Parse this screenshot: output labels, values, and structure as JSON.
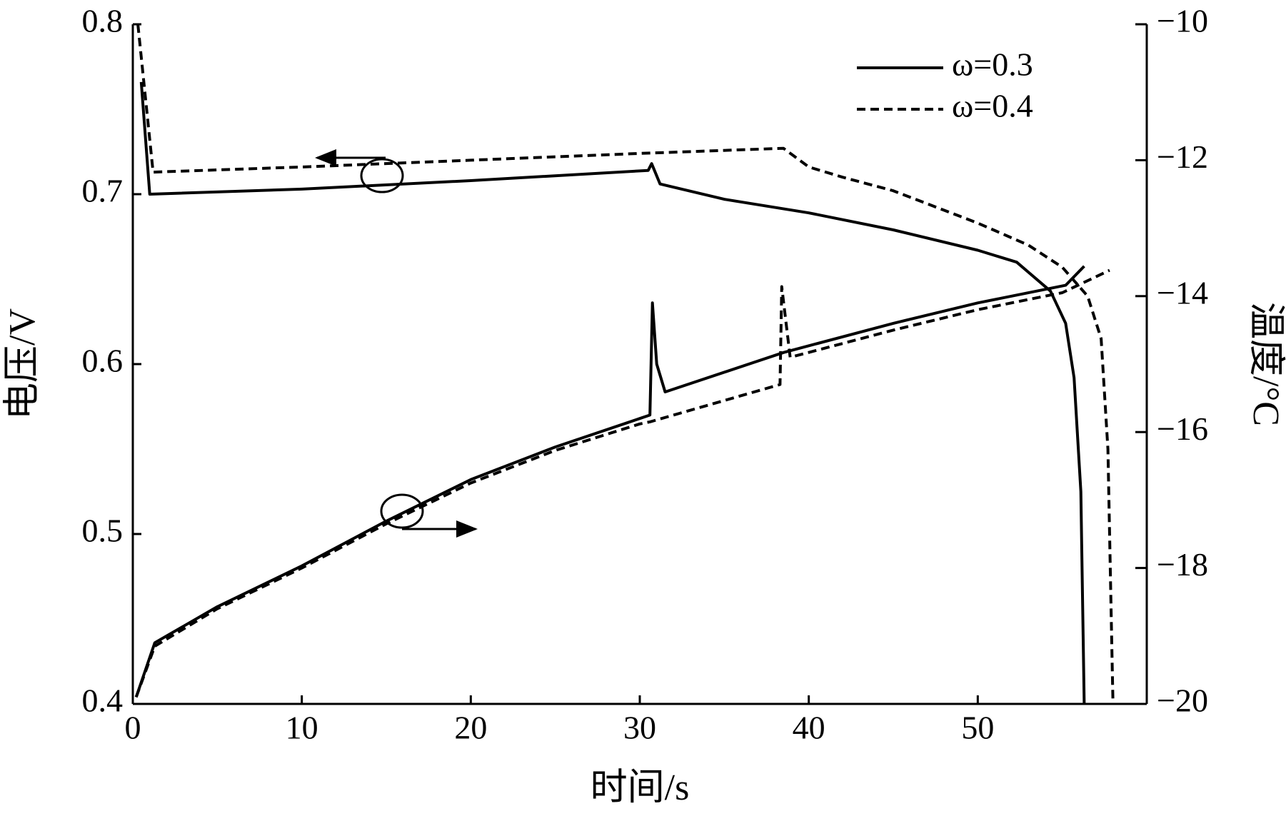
{
  "chart_data": {
    "type": "line",
    "xlabel": "时间/s",
    "ylabel": "电压/V",
    "y2label": "温度/°C",
    "xlim": [
      0,
      60
    ],
    "xticks": [
      0,
      10,
      20,
      30,
      40,
      50
    ],
    "ylim": [
      0.4,
      0.8
    ],
    "yticks": [
      0.4,
      0.5,
      0.6,
      0.7,
      0.8
    ],
    "y2lim": [
      -20,
      -10
    ],
    "y2ticks": [
      {
        "value": -20,
        "label": "−20"
      },
      {
        "value": -18,
        "label": "−18"
      },
      {
        "value": -16,
        "label": "−16"
      },
      {
        "value": -14,
        "label": "−14"
      },
      {
        "value": -12,
        "label": "−12"
      },
      {
        "value": -10,
        "label": "−10"
      }
    ],
    "legend": "upper right",
    "series": [
      {
        "name": "ω=0.3",
        "color": "#000000",
        "dashed": false,
        "x": [
          0.5,
          1.0,
          10,
          20,
          30.5,
          30.7,
          31.2,
          35,
          40,
          45,
          50,
          52.3,
          54.3,
          55.2,
          55.7,
          56.1,
          56.3
        ],
        "values": [
          0.766,
          0.7,
          0.703,
          0.708,
          0.714,
          0.718,
          0.706,
          0.697,
          0.689,
          0.679,
          0.667,
          0.66,
          0.643,
          0.624,
          0.592,
          0.525,
          0.4
        ]
      },
      {
        "name": "ω=0.4",
        "color": "#000000",
        "dashed": true,
        "x": [
          0.3,
          1.2,
          10,
          20,
          30,
          38.5,
          40,
          42,
          45,
          50,
          53,
          55,
          56.5,
          57.3,
          57.7,
          57.9,
          58
        ],
        "values": [
          0.8,
          0.713,
          0.716,
          0.72,
          0.724,
          0.727,
          0.716,
          0.71,
          0.702,
          0.683,
          0.67,
          0.657,
          0.64,
          0.615,
          0.55,
          0.45,
          0.4
        ]
      },
      {
        "axis": "y2",
        "color": "#000000",
        "dashed": false,
        "x": [
          0.2,
          1.3,
          5,
          10,
          15,
          20,
          25,
          30,
          30.6,
          30.75,
          31,
          31.5,
          38.5,
          45,
          50,
          55.2,
          56.3
        ],
        "values": [
          -19.9,
          -19.1,
          -18.57,
          -17.97,
          -17.31,
          -16.7,
          -16.22,
          -15.8,
          -15.75,
          -14.1,
          -15.0,
          -15.41,
          -14.83,
          -14.4,
          -14.1,
          -13.84,
          -13.56
        ]
      },
      {
        "axis": "y2",
        "color": "#000000",
        "dashed": true,
        "x": [
          0.2,
          1.3,
          5,
          10,
          15,
          20,
          25,
          30,
          30.6,
          38.3,
          38.4,
          38.9,
          45,
          50,
          55,
          57.8
        ],
        "values": [
          -19.9,
          -19.15,
          -18.6,
          -18.0,
          -17.35,
          -16.75,
          -16.27,
          -15.88,
          -15.85,
          -15.3,
          -13.86,
          -14.9,
          -14.5,
          -14.2,
          -13.95,
          -13.62
        ]
      }
    ]
  }
}
